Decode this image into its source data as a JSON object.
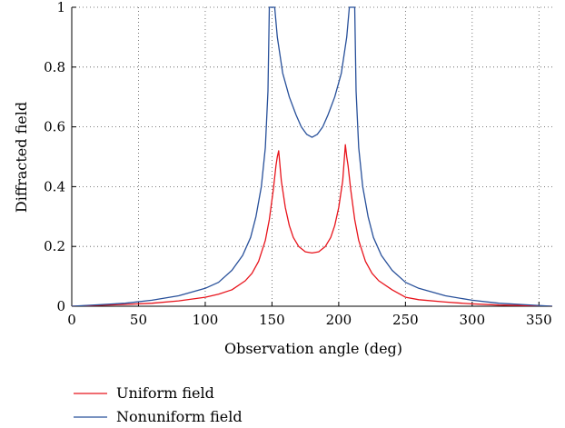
{
  "chart_data": {
    "type": "line",
    "title": "",
    "xlabel": "Observation angle (deg)",
    "ylabel": "Diffracted field",
    "xlim": [
      0,
      360
    ],
    "ylim": [
      0,
      1
    ],
    "x_ticks": [
      0,
      50,
      100,
      150,
      200,
      250,
      300,
      350
    ],
    "y_ticks": [
      0,
      0.2,
      0.4,
      0.6,
      0.8,
      1
    ],
    "x_tick_labels": [
      "0",
      "50",
      "100",
      "150",
      "200",
      "250",
      "300",
      "350"
    ],
    "y_tick_labels": [
      "0",
      "0.2",
      "0.4",
      "0.6",
      "0.8",
      "1"
    ],
    "grid": true,
    "legend_position": "bottom-left, below plot",
    "series": [
      {
        "name": "Uniform field",
        "color": "#e8141c",
        "x": [
          0,
          20,
          40,
          60,
          80,
          100,
          110,
          120,
          130,
          135,
          140,
          145,
          148,
          151,
          153,
          154,
          155,
          157,
          160,
          163,
          166,
          170,
          175,
          180,
          185,
          190,
          194,
          197,
          200,
          203,
          205,
          206,
          207,
          209,
          212,
          215,
          220,
          225,
          230,
          240,
          250,
          260,
          280,
          300,
          320,
          340,
          360
        ],
        "y": [
          0.0,
          0.003,
          0.006,
          0.01,
          0.018,
          0.03,
          0.04,
          0.055,
          0.085,
          0.11,
          0.15,
          0.22,
          0.29,
          0.39,
          0.47,
          0.5,
          0.52,
          0.42,
          0.33,
          0.27,
          0.23,
          0.2,
          0.182,
          0.178,
          0.182,
          0.2,
          0.23,
          0.27,
          0.33,
          0.42,
          0.54,
          0.5,
          0.47,
          0.39,
          0.29,
          0.22,
          0.15,
          0.11,
          0.085,
          0.055,
          0.03,
          0.022,
          0.014,
          0.008,
          0.004,
          0.002,
          0.0
        ]
      },
      {
        "name": "Nonuniform field",
        "color": "#28509a",
        "x": [
          0,
          20,
          40,
          60,
          80,
          100,
          110,
          120,
          128,
          134,
          138,
          142,
          145,
          147,
          148,
          152,
          154,
          158,
          163,
          168,
          172,
          176,
          180,
          184,
          188,
          192,
          197,
          202,
          206,
          208,
          212,
          213,
          215,
          218,
          222,
          226,
          232,
          240,
          250,
          260,
          280,
          300,
          320,
          340,
          360
        ],
        "y": [
          0.0,
          0.005,
          0.01,
          0.02,
          0.035,
          0.06,
          0.08,
          0.12,
          0.17,
          0.23,
          0.3,
          0.4,
          0.53,
          0.72,
          1.0,
          1.0,
          0.9,
          0.78,
          0.7,
          0.64,
          0.6,
          0.575,
          0.565,
          0.575,
          0.6,
          0.64,
          0.7,
          0.78,
          0.9,
          1.0,
          1.0,
          0.72,
          0.53,
          0.4,
          0.3,
          0.23,
          0.17,
          0.12,
          0.08,
          0.06,
          0.035,
          0.02,
          0.01,
          0.005,
          0.0
        ]
      }
    ]
  }
}
